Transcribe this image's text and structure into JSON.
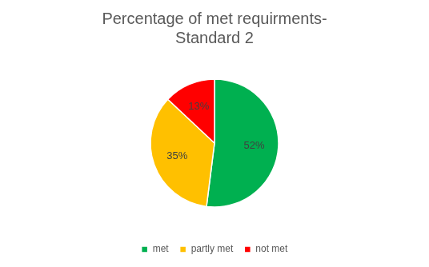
{
  "chart_data": {
    "type": "pie",
    "title": [
      "Percentage of met requirments-",
      "Standard 2"
    ],
    "categories": [
      "met",
      "partly met",
      "not met"
    ],
    "values": [
      52,
      35,
      13
    ],
    "value_labels": [
      "52%",
      "35%",
      "13%"
    ],
    "colors": [
      "#00b050",
      "#ffc000",
      "#ff0000"
    ],
    "data_labels": true,
    "legend": "bottom"
  }
}
